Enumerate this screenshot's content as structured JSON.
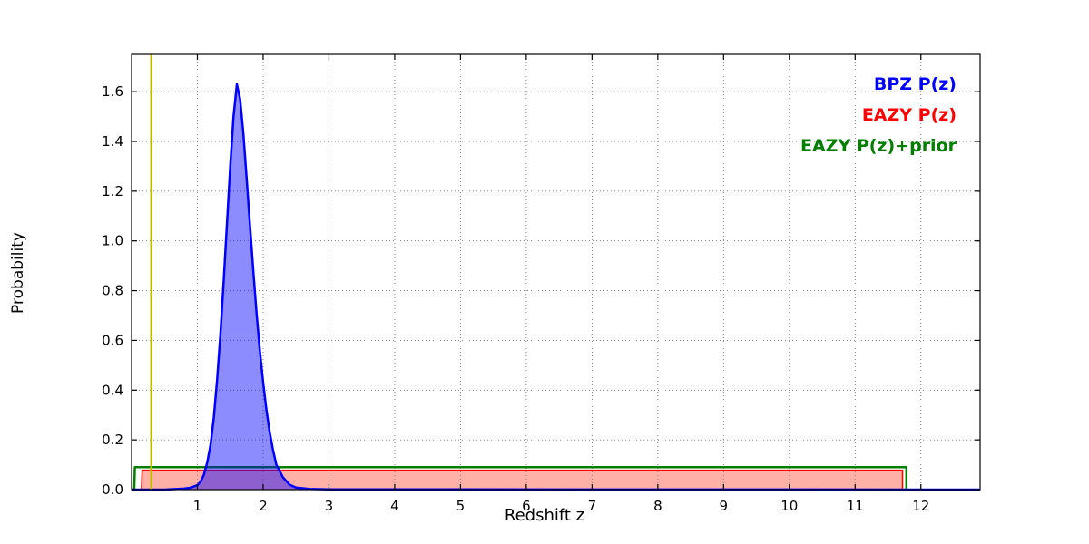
{
  "chart_data": {
    "type": "line",
    "title": "",
    "xlabel": "Redshift z",
    "ylabel": "Probability",
    "xlim": [
      0,
      12.9
    ],
    "ylim": [
      0,
      1.75
    ],
    "xticks": [
      1,
      2,
      3,
      4,
      5,
      6,
      7,
      8,
      9,
      10,
      11,
      12
    ],
    "yticks": [
      0.0,
      0.2,
      0.4,
      0.6,
      0.8,
      1.0,
      1.2,
      1.4,
      1.6
    ],
    "grid": true,
    "grid_style": "dotted",
    "legend_position": "upper right",
    "series": [
      {
        "name": "BPZ P(z)",
        "color": "#0000ff",
        "fill": "rgba(0,0,255,0.45)",
        "line_width": 2.5,
        "points": [
          [
            0,
            0
          ],
          [
            0.5,
            0
          ],
          [
            0.8,
            0.004
          ],
          [
            0.9,
            0.008
          ],
          [
            1.0,
            0.018
          ],
          [
            1.05,
            0.032
          ],
          [
            1.1,
            0.06
          ],
          [
            1.15,
            0.11
          ],
          [
            1.2,
            0.18
          ],
          [
            1.25,
            0.29
          ],
          [
            1.3,
            0.44
          ],
          [
            1.35,
            0.62
          ],
          [
            1.4,
            0.84
          ],
          [
            1.45,
            1.07
          ],
          [
            1.5,
            1.3
          ],
          [
            1.55,
            1.5
          ],
          [
            1.6,
            1.63
          ],
          [
            1.65,
            1.57
          ],
          [
            1.7,
            1.43
          ],
          [
            1.75,
            1.25
          ],
          [
            1.8,
            1.06
          ],
          [
            1.85,
            0.88
          ],
          [
            1.9,
            0.71
          ],
          [
            1.95,
            0.56
          ],
          [
            2.0,
            0.43
          ],
          [
            2.05,
            0.32
          ],
          [
            2.1,
            0.23
          ],
          [
            2.15,
            0.16
          ],
          [
            2.2,
            0.1
          ],
          [
            2.3,
            0.05
          ],
          [
            2.4,
            0.02
          ],
          [
            2.5,
            0.008
          ],
          [
            2.7,
            0.003
          ],
          [
            3.0,
            0.001
          ],
          [
            12.9,
            0
          ]
        ]
      },
      {
        "name": "EAZY P(z)",
        "color": "#ff0000",
        "fill": "rgba(255,80,60,0.45)",
        "line_width": 1.5,
        "points": [
          [
            0.15,
            0
          ],
          [
            0.16,
            0.078
          ],
          [
            11.72,
            0.078
          ],
          [
            11.72,
            0
          ]
        ]
      },
      {
        "name": "EAZY P(z)+prior",
        "color": "#007f00",
        "fill": null,
        "line_width": 2.5,
        "points": [
          [
            0.04,
            0
          ],
          [
            0.05,
            0.09
          ],
          [
            11.78,
            0.09
          ],
          [
            11.78,
            0
          ]
        ]
      }
    ],
    "vline": {
      "x": 0.3,
      "color": "#bfbf00",
      "line_width": 2.5
    }
  }
}
